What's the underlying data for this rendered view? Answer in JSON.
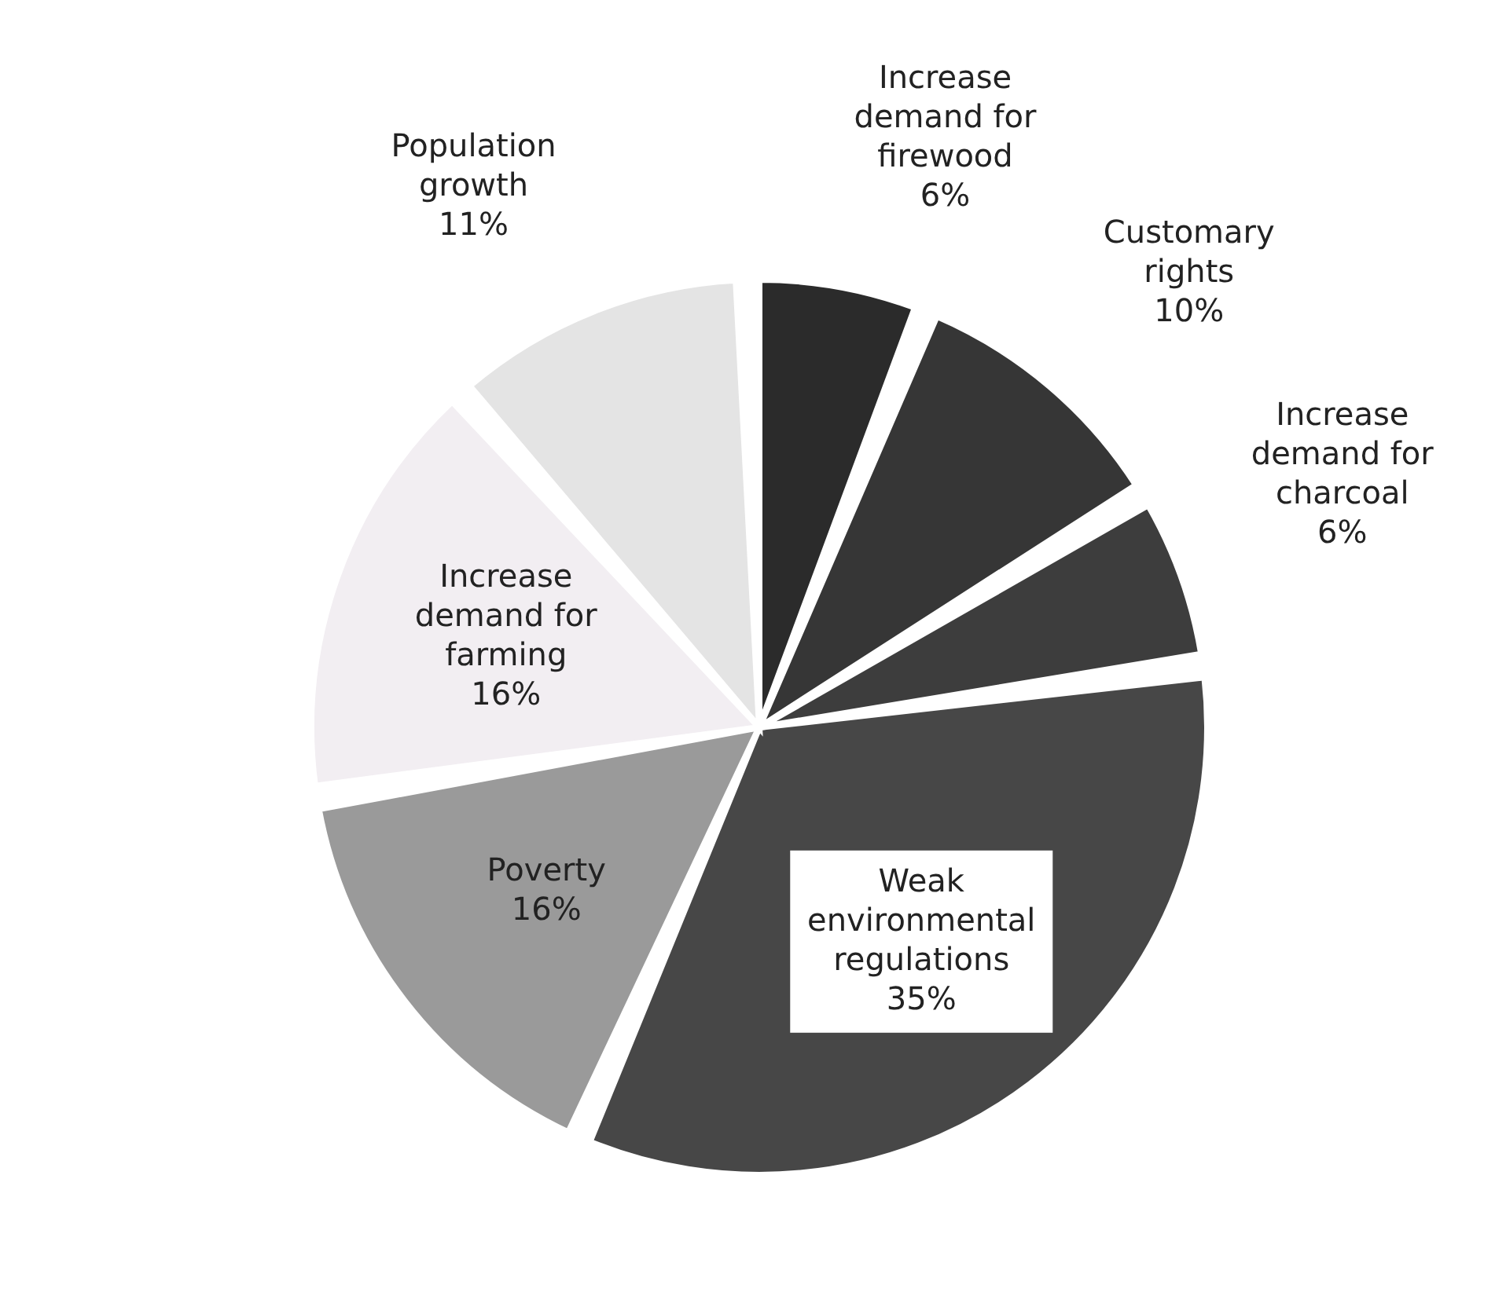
{
  "chart_data": {
    "type": "pie",
    "categories": [
      "Increase demand for firewood",
      "Customary rights",
      "Increase demand for charcoal",
      "Weak environmental regulations",
      "Poverty",
      "Increase demand for farming",
      "Population growth"
    ],
    "values": [
      6,
      10,
      6,
      35,
      16,
      16,
      11
    ],
    "value_labels": [
      "6%",
      "10%",
      "6%",
      "35%",
      "16%",
      "16%",
      "11%"
    ],
    "colors": [
      "#2b2b2b",
      "#363636",
      "#3d3d3d",
      "#474747",
      "#9a9a9a",
      "#f2eef2",
      "#e4e4e4"
    ],
    "legend": false
  }
}
